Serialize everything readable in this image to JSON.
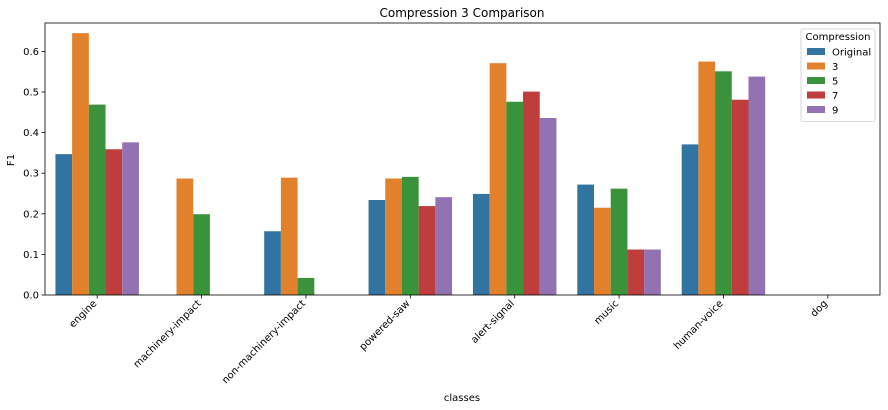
{
  "chart_data": {
    "type": "bar",
    "title": "Compression 3 Comparison",
    "xlabel": "classes",
    "ylabel": "F1",
    "ylim": [
      0,
      0.67
    ],
    "yticks": [
      0.0,
      0.1,
      0.2,
      0.3,
      0.4,
      0.5,
      0.6
    ],
    "ytick_labels": [
      "0.0",
      "0.1",
      "0.2",
      "0.3",
      "0.4",
      "0.5",
      "0.6"
    ],
    "categories": [
      "engine",
      "machinery-impact",
      "non-machinery-impact",
      "powered-saw",
      "alert-signal",
      "music",
      "human-voice",
      "dog"
    ],
    "grid": false,
    "legend": {
      "title": "Compression",
      "position": "top-right"
    },
    "series": [
      {
        "name": "Original",
        "color": "#3274a1",
        "values": [
          0.347,
          0.0,
          0.157,
          0.234,
          0.249,
          0.272,
          0.371,
          0.0
        ]
      },
      {
        "name": "3",
        "color": "#e1812c",
        "values": [
          0.645,
          0.287,
          0.289,
          0.287,
          0.571,
          0.215,
          0.575,
          0.0
        ]
      },
      {
        "name": "5",
        "color": "#3a923a",
        "values": [
          0.469,
          0.199,
          0.042,
          0.291,
          0.476,
          0.262,
          0.551,
          0.0
        ]
      },
      {
        "name": "7",
        "color": "#c03d3e",
        "values": [
          0.359,
          0.0,
          0.0,
          0.219,
          0.501,
          0.112,
          0.481,
          0.0
        ]
      },
      {
        "name": "9",
        "color": "#9372b2",
        "values": [
          0.376,
          0.0,
          0.0,
          0.241,
          0.436,
          0.112,
          0.538,
          0.0
        ]
      }
    ]
  }
}
